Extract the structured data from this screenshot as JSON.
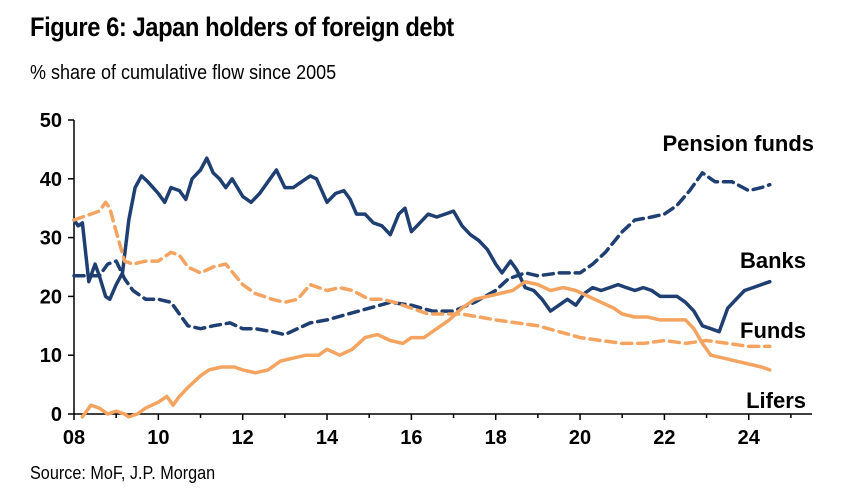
{
  "title": "Figure 6: Japan holders of foreign debt",
  "subtitle": "% share of cumulative flow since 2005",
  "source": "Source: MoF, J.P. Morgan",
  "chart_data": {
    "type": "line",
    "xlim": [
      2008,
      2025.5
    ],
    "ylim": [
      0,
      50
    ],
    "x_ticks": [
      "08",
      "10",
      "12",
      "14",
      "16",
      "18",
      "20",
      "22",
      "24"
    ],
    "y_ticks": [
      "0",
      "10",
      "20",
      "30",
      "40",
      "50"
    ],
    "grid": false,
    "series": [
      {
        "name": "Pension funds",
        "color": "#1F3F73",
        "style": "dashed",
        "points": [
          [
            2008.0,
            23.5
          ],
          [
            2008.3,
            23.5
          ],
          [
            2008.6,
            23.5
          ],
          [
            2008.8,
            25.5
          ],
          [
            2009.0,
            26
          ],
          [
            2009.2,
            23
          ],
          [
            2009.4,
            21
          ],
          [
            2009.7,
            19.5
          ],
          [
            2010.0,
            19.5
          ],
          [
            2010.3,
            19
          ],
          [
            2010.5,
            17
          ],
          [
            2010.7,
            15
          ],
          [
            2011.0,
            14.5
          ],
          [
            2011.3,
            15
          ],
          [
            2011.7,
            15.5
          ],
          [
            2012.0,
            14.5
          ],
          [
            2012.3,
            14.5
          ],
          [
            2012.7,
            14
          ],
          [
            2013.0,
            13.5
          ],
          [
            2013.3,
            14.5
          ],
          [
            2013.6,
            15.5
          ],
          [
            2014.0,
            16
          ],
          [
            2014.5,
            17
          ],
          [
            2015.0,
            18
          ],
          [
            2015.5,
            19
          ],
          [
            2016.0,
            18.5
          ],
          [
            2016.5,
            17.5
          ],
          [
            2017.0,
            17.5
          ],
          [
            2017.5,
            19
          ],
          [
            2018.0,
            21
          ],
          [
            2018.3,
            23
          ],
          [
            2018.7,
            24
          ],
          [
            2019.0,
            23.5
          ],
          [
            2019.5,
            24
          ],
          [
            2020.0,
            24
          ],
          [
            2020.3,
            25.5
          ],
          [
            2020.6,
            27.5
          ],
          [
            2021.0,
            31
          ],
          [
            2021.3,
            33
          ],
          [
            2021.7,
            33.5
          ],
          [
            2022.0,
            34
          ],
          [
            2022.3,
            35.5
          ],
          [
            2022.6,
            38
          ],
          [
            2022.9,
            41
          ],
          [
            2023.2,
            39.5
          ],
          [
            2023.6,
            39.5
          ],
          [
            2024.0,
            38
          ],
          [
            2024.3,
            38.5
          ],
          [
            2024.5,
            39
          ]
        ]
      },
      {
        "name": "Banks",
        "color": "#1F3F73",
        "style": "solid",
        "points": [
          [
            2008.0,
            33
          ],
          [
            2008.1,
            32
          ],
          [
            2008.2,
            32.5
          ],
          [
            2008.35,
            22.5
          ],
          [
            2008.5,
            25.5
          ],
          [
            2008.6,
            23.5
          ],
          [
            2008.75,
            20
          ],
          [
            2008.85,
            19.5
          ],
          [
            2009.0,
            22
          ],
          [
            2009.15,
            24
          ],
          [
            2009.3,
            33
          ],
          [
            2009.45,
            38.5
          ],
          [
            2009.6,
            40.5
          ],
          [
            2009.75,
            39.5
          ],
          [
            2010.0,
            37.5
          ],
          [
            2010.15,
            36
          ],
          [
            2010.3,
            38.5
          ],
          [
            2010.5,
            38
          ],
          [
            2010.65,
            36.5
          ],
          [
            2010.8,
            40
          ],
          [
            2011.0,
            41.5
          ],
          [
            2011.15,
            43.5
          ],
          [
            2011.3,
            41
          ],
          [
            2011.45,
            40
          ],
          [
            2011.6,
            38.5
          ],
          [
            2011.75,
            40
          ],
          [
            2012.0,
            37
          ],
          [
            2012.2,
            36
          ],
          [
            2012.4,
            37.5
          ],
          [
            2012.6,
            39.5
          ],
          [
            2012.8,
            41.5
          ],
          [
            2013.0,
            38.5
          ],
          [
            2013.2,
            38.5
          ],
          [
            2013.4,
            39.5
          ],
          [
            2013.6,
            40.5
          ],
          [
            2013.75,
            40
          ],
          [
            2014.0,
            36
          ],
          [
            2014.2,
            37.5
          ],
          [
            2014.4,
            38
          ],
          [
            2014.55,
            36.5
          ],
          [
            2014.7,
            34
          ],
          [
            2014.9,
            34
          ],
          [
            2015.1,
            32.5
          ],
          [
            2015.3,
            32
          ],
          [
            2015.5,
            30.5
          ],
          [
            2015.7,
            34
          ],
          [
            2015.85,
            35
          ],
          [
            2016.0,
            31
          ],
          [
            2016.2,
            32.5
          ],
          [
            2016.4,
            34
          ],
          [
            2016.6,
            33.5
          ],
          [
            2016.8,
            34
          ],
          [
            2017.0,
            34.5
          ],
          [
            2017.2,
            32
          ],
          [
            2017.4,
            30.5
          ],
          [
            2017.6,
            29.5
          ],
          [
            2017.8,
            28
          ],
          [
            2018.0,
            25.5
          ],
          [
            2018.15,
            24
          ],
          [
            2018.35,
            26
          ],
          [
            2018.5,
            24.5
          ],
          [
            2018.7,
            21.5
          ],
          [
            2018.9,
            21
          ],
          [
            2019.1,
            19.5
          ],
          [
            2019.3,
            17.5
          ],
          [
            2019.5,
            18.5
          ],
          [
            2019.7,
            19.5
          ],
          [
            2019.9,
            18.5
          ],
          [
            2020.1,
            20.5
          ],
          [
            2020.3,
            21.5
          ],
          [
            2020.5,
            21
          ],
          [
            2020.7,
            21.5
          ],
          [
            2020.9,
            22
          ],
          [
            2021.1,
            21.5
          ],
          [
            2021.3,
            21
          ],
          [
            2021.5,
            21.5
          ],
          [
            2021.7,
            21
          ],
          [
            2021.9,
            20
          ],
          [
            2022.1,
            20
          ],
          [
            2022.3,
            20
          ],
          [
            2022.5,
            19
          ],
          [
            2022.7,
            17.5
          ],
          [
            2022.9,
            15
          ],
          [
            2023.1,
            14.5
          ],
          [
            2023.3,
            14
          ],
          [
            2023.5,
            18
          ],
          [
            2023.7,
            19.5
          ],
          [
            2023.9,
            21
          ],
          [
            2024.1,
            21.5
          ],
          [
            2024.3,
            22
          ],
          [
            2024.5,
            22.5
          ]
        ]
      },
      {
        "name": "Funds",
        "color": "#F4A460",
        "style": "dashed",
        "points": [
          [
            2008.0,
            33
          ],
          [
            2008.2,
            33.5
          ],
          [
            2008.4,
            34
          ],
          [
            2008.6,
            34.5
          ],
          [
            2008.75,
            36
          ],
          [
            2008.85,
            35
          ],
          [
            2009.0,
            31
          ],
          [
            2009.2,
            26
          ],
          [
            2009.4,
            25.5
          ],
          [
            2009.7,
            26
          ],
          [
            2010.0,
            26
          ],
          [
            2010.3,
            27.5
          ],
          [
            2010.5,
            27
          ],
          [
            2010.7,
            25
          ],
          [
            2011.0,
            24
          ],
          [
            2011.3,
            25
          ],
          [
            2011.6,
            25.5
          ],
          [
            2012.0,
            22
          ],
          [
            2012.3,
            20.5
          ],
          [
            2012.7,
            19.5
          ],
          [
            2013.0,
            19
          ],
          [
            2013.3,
            19.5
          ],
          [
            2013.6,
            22
          ],
          [
            2014.0,
            21
          ],
          [
            2014.3,
            21.5
          ],
          [
            2014.6,
            21
          ],
          [
            2015.0,
            19.5
          ],
          [
            2015.3,
            19.5
          ],
          [
            2015.6,
            19
          ],
          [
            2016.0,
            18
          ],
          [
            2016.4,
            17
          ],
          [
            2016.8,
            17
          ],
          [
            2017.2,
            17
          ],
          [
            2017.6,
            16.5
          ],
          [
            2018.0,
            16
          ],
          [
            2018.5,
            15.5
          ],
          [
            2019.0,
            15
          ],
          [
            2019.5,
            14
          ],
          [
            2020.0,
            13
          ],
          [
            2020.5,
            12.5
          ],
          [
            2021.0,
            12
          ],
          [
            2021.5,
            12
          ],
          [
            2022.0,
            12.5
          ],
          [
            2022.5,
            12
          ],
          [
            2023.0,
            12.5
          ],
          [
            2023.5,
            12
          ],
          [
            2024.0,
            11.5
          ],
          [
            2024.5,
            11.5
          ]
        ]
      },
      {
        "name": "Lifers",
        "color": "#F4A460",
        "style": "solid",
        "points": [
          [
            2008.2,
            -0.5
          ],
          [
            2008.4,
            1.5
          ],
          [
            2008.6,
            1
          ],
          [
            2008.8,
            0
          ],
          [
            2009.0,
            0.5
          ],
          [
            2009.2,
            0
          ],
          [
            2009.3,
            -0.5
          ],
          [
            2009.5,
            0
          ],
          [
            2009.7,
            1
          ],
          [
            2010.0,
            2
          ],
          [
            2010.2,
            3
          ],
          [
            2010.35,
            1.5
          ],
          [
            2010.5,
            3
          ],
          [
            2010.7,
            4.5
          ],
          [
            2011.0,
            6.5
          ],
          [
            2011.2,
            7.5
          ],
          [
            2011.5,
            8
          ],
          [
            2011.8,
            8
          ],
          [
            2012.0,
            7.5
          ],
          [
            2012.3,
            7
          ],
          [
            2012.6,
            7.5
          ],
          [
            2012.9,
            9
          ],
          [
            2013.2,
            9.5
          ],
          [
            2013.5,
            10
          ],
          [
            2013.8,
            10
          ],
          [
            2014.0,
            11
          ],
          [
            2014.3,
            10
          ],
          [
            2014.6,
            11
          ],
          [
            2014.9,
            13
          ],
          [
            2015.2,
            13.5
          ],
          [
            2015.5,
            12.5
          ],
          [
            2015.8,
            12
          ],
          [
            2016.0,
            13
          ],
          [
            2016.3,
            13
          ],
          [
            2016.6,
            14.5
          ],
          [
            2016.9,
            16
          ],
          [
            2017.2,
            18
          ],
          [
            2017.5,
            19.5
          ],
          [
            2017.8,
            20
          ],
          [
            2018.1,
            20.5
          ],
          [
            2018.4,
            21
          ],
          [
            2018.7,
            22.5
          ],
          [
            2019.0,
            22
          ],
          [
            2019.3,
            21
          ],
          [
            2019.6,
            21.5
          ],
          [
            2019.9,
            21
          ],
          [
            2020.2,
            20
          ],
          [
            2020.5,
            19
          ],
          [
            2020.8,
            18
          ],
          [
            2021.0,
            17
          ],
          [
            2021.3,
            16.5
          ],
          [
            2021.6,
            16.5
          ],
          [
            2021.9,
            16
          ],
          [
            2022.2,
            16
          ],
          [
            2022.5,
            16
          ],
          [
            2022.7,
            14.5
          ],
          [
            2022.9,
            12
          ],
          [
            2023.1,
            10
          ],
          [
            2023.4,
            9.5
          ],
          [
            2023.7,
            9
          ],
          [
            2024.0,
            8.5
          ],
          [
            2024.3,
            8
          ],
          [
            2024.5,
            7.5
          ]
        ]
      }
    ]
  }
}
